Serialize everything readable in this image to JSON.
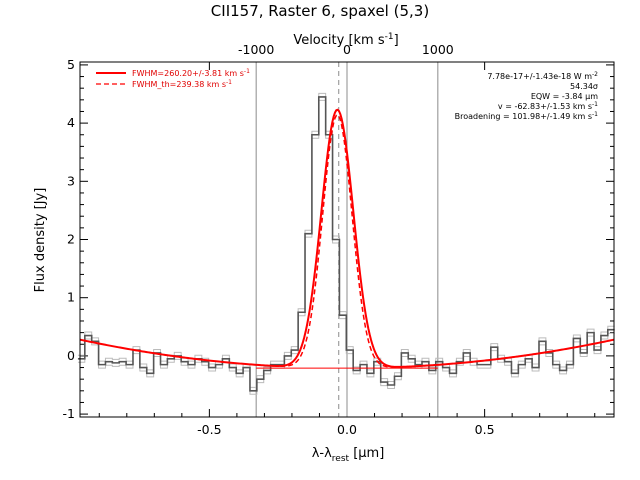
{
  "chart_data": {
    "type": "line",
    "title": "CII157, Raster 6, spaxel (5,3)",
    "xlabel": "λ-λ",
    "xlabel_sub": "rest",
    "xlabel_unit": " [μm]",
    "ylabel": "Flux density [Jy]",
    "top_axis_label": "Velocity [km s",
    "top_axis_label_sup": "-1",
    "top_axis_label_end": "]",
    "xlim": [
      -0.97,
      0.97
    ],
    "ylim": [
      -1.05,
      5.05
    ],
    "x_ticks": [
      -0.5,
      0.0,
      0.5
    ],
    "x_tick_labels": [
      "-0.5",
      "0.0",
      "0.5"
    ],
    "y_ticks": [
      -1,
      0,
      1,
      2,
      3,
      4,
      5
    ],
    "y_tick_labels": [
      "-1",
      "0",
      "1",
      "2",
      "3",
      "4",
      "5"
    ],
    "top_ticks": [
      -1000,
      0,
      1000
    ],
    "top_tick_labels": [
      "-1000",
      "0",
      "1000"
    ],
    "vertical_lines": [
      -0.33,
      0.0,
      0.33
    ],
    "dashed_vertical_line": -0.03,
    "spectrum": {
      "x": [
        -0.965,
        -0.94,
        -0.915,
        -0.89,
        -0.865,
        -0.84,
        -0.815,
        -0.79,
        -0.765,
        -0.74,
        -0.715,
        -0.69,
        -0.665,
        -0.64,
        -0.615,
        -0.59,
        -0.565,
        -0.54,
        -0.515,
        -0.49,
        -0.465,
        -0.44,
        -0.415,
        -0.39,
        -0.365,
        -0.34,
        -0.315,
        -0.29,
        -0.265,
        -0.24,
        -0.215,
        -0.19,
        -0.165,
        -0.14,
        -0.115,
        -0.09,
        -0.065,
        -0.04,
        -0.015,
        0.01,
        0.035,
        0.06,
        0.085,
        0.11,
        0.135,
        0.16,
        0.185,
        0.21,
        0.235,
        0.26,
        0.285,
        0.31,
        0.335,
        0.36,
        0.385,
        0.41,
        0.435,
        0.46,
        0.485,
        0.51,
        0.535,
        0.56,
        0.585,
        0.61,
        0.635,
        0.66,
        0.685,
        0.71,
        0.735,
        0.76,
        0.785,
        0.81,
        0.835,
        0.86,
        0.885,
        0.91,
        0.935,
        0.96
      ],
      "y": [
        -0.05,
        0.35,
        0.25,
        -0.15,
        -0.1,
        -0.12,
        -0.1,
        -0.15,
        0.1,
        -0.2,
        -0.3,
        0.05,
        -0.15,
        -0.05,
        0.0,
        -0.1,
        -0.15,
        -0.05,
        -0.1,
        -0.2,
        -0.15,
        -0.05,
        -0.2,
        -0.3,
        -0.2,
        -0.6,
        -0.4,
        -0.25,
        -0.15,
        -0.15,
        0.0,
        0.1,
        0.75,
        2.1,
        3.8,
        4.45,
        3.8,
        2.0,
        0.7,
        0.1,
        -0.25,
        -0.15,
        -0.3,
        -0.1,
        -0.45,
        -0.5,
        -0.35,
        0.05,
        -0.05,
        -0.15,
        -0.1,
        -0.25,
        -0.1,
        -0.2,
        -0.3,
        -0.1,
        0.05,
        -0.1,
        -0.15,
        -0.15,
        0.15,
        -0.05,
        -0.1,
        -0.3,
        -0.15,
        -0.05,
        -0.2,
        0.25,
        0.05,
        -0.15,
        -0.25,
        -0.15,
        0.3,
        0.05,
        0.4,
        0.1,
        0.35,
        0.45
      ]
    },
    "model": {
      "baseline": [
        -0.21,
        0.0,
        0.52
      ],
      "amplitude": 4.44,
      "center": -0.035,
      "sigma": 0.058
    },
    "legend": [
      {
        "label": "FWHM=260.20+/-3.81 km s",
        "sup": "-1",
        "style": "solid"
      },
      {
        "label": "FWHM_th=239.38 km s",
        "sup": "-1",
        "style": "dashed"
      }
    ],
    "legend_position": "top-left",
    "stats": [
      {
        "text": "7.78e-17+/-1.43e-18 W m",
        "sup": "-2"
      },
      {
        "text": "54.34σ",
        "sup": ""
      },
      {
        "text": "EQW = -3.84 μm",
        "sup": ""
      },
      {
        "text": "v = -62.83+/-1.53 km s",
        "sup": "-1"
      },
      {
        "text": "Broadening = 101.98+/-1.49 km s",
        "sup": "-1"
      }
    ],
    "colors": {
      "fit": "#ff0000",
      "spectrum": "#555555",
      "error": "#bbbbbb",
      "vline": "#8c8c8c"
    }
  }
}
